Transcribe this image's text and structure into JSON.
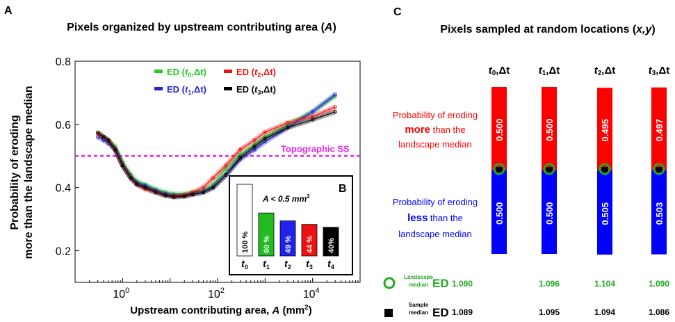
{
  "panel_a": {
    "letter": "A",
    "title": "Pixels organized by upstream contributing area (A)",
    "title_main": "Pixels organized by upstream contributing area (",
    "title_var": "A",
    "title_end": ")",
    "ylabel_line1": "Probability of eroding",
    "ylabel_line2": "more than the landscape median",
    "xlabel_main": "Upstream contributing area, ",
    "xlabel_var": "A",
    "xlabel_unit": " (mm",
    "xlabel_exp": "2",
    "xlabel_end": ")",
    "ss_label": "Topographic  SS",
    "legend": [
      {
        "name": "ED (t0,Δt)",
        "pre": "ED (",
        "t": "t",
        "sub": "0",
        "post": ",Δt)",
        "color": "#22cc22"
      },
      {
        "name": "ED (t2,Δt)",
        "pre": "ED (",
        "t": "t",
        "sub": "2",
        "post": ",Δt)",
        "color": "#ee1111"
      },
      {
        "name": "ED (t1,Δt)",
        "pre": "ED (",
        "t": "t",
        "sub": "1",
        "post": ",Δt)",
        "color": "#2222dd"
      },
      {
        "name": "ED (t3,Δt)",
        "pre": "ED (",
        "t": "t",
        "sub": "3",
        "post": ",Δt)",
        "color": "#000000"
      }
    ]
  },
  "panel_b": {
    "letter": "B",
    "condition_main": "A < 0.5 mm",
    "condition_exp": "2",
    "bars": [
      {
        "label": "100 %",
        "t": "t",
        "sub": "0",
        "value": 100,
        "fill": "#ffffff",
        "text_color": "#000000"
      },
      {
        "label": "60 %",
        "t": "t",
        "sub": "1",
        "value": 60,
        "fill": "#22bb22",
        "text_color": "#ffffff"
      },
      {
        "label": "49 %",
        "t": "t",
        "sub": "2",
        "value": 49,
        "fill": "#2222ee",
        "text_color": "#ffffff"
      },
      {
        "label": "44 %",
        "t": "t",
        "sub": "3",
        "value": 44,
        "fill": "#ee1111",
        "text_color": "#ffffff"
      },
      {
        "label": "40%",
        "t": "t",
        "sub": "4",
        "value": 40,
        "fill": "#000000",
        "text_color": "#ffffff"
      }
    ]
  },
  "panel_c": {
    "letter": "C",
    "title": "Pixels sampled at random locations (x,y)",
    "title_main": "Pixels sampled at random locations (",
    "title_var": "x,y",
    "title_end": ")",
    "more_line1": "Probability of eroding",
    "more_word": "more",
    "more_rest": " than the",
    "more_line3": "landscape median",
    "less_line1": "Probability of eroding",
    "less_word": "less",
    "less_rest": "  than the",
    "less_line3": "landscape median",
    "landscape_label_1": "Landscape",
    "landscape_label_2": "median",
    "sample_label_1": "Sample",
    "sample_label_2": "median",
    "ed_label": "ED",
    "columns": [
      {
        "t": "t",
        "sub": "0",
        "suffix": ",Δt",
        "more": 0.5,
        "less": 0.5,
        "more_label": "0.500",
        "less_label": "0.500",
        "landscape_ed": "1.090",
        "sample_ed": "1.089"
      },
      {
        "t": "t",
        "sub": "1",
        "suffix": ",Δt",
        "more": 0.5,
        "less": 0.5,
        "more_label": "0.500",
        "less_label": "0.500",
        "landscape_ed": "1.096",
        "sample_ed": "1.095"
      },
      {
        "t": "t",
        "sub": "2",
        "suffix": ",Δt",
        "more": 0.495,
        "less": 0.505,
        "more_label": "0.495",
        "less_label": "0.505",
        "landscape_ed": "1.104",
        "sample_ed": "1.094"
      },
      {
        "t": "t",
        "sub": "3",
        "suffix": ",Δt",
        "more": 0.497,
        "less": 0.503,
        "more_label": "0.497",
        "less_label": "0.503",
        "landscape_ed": "1.090",
        "sample_ed": "1.086"
      }
    ],
    "colors": {
      "more": "#ff0000",
      "less": "#0000ff",
      "landscape": "#22aa22",
      "sample": "#000000"
    }
  },
  "chart_data": {
    "type": "line",
    "x_scale": "log",
    "xlim": [
      0.1,
      100000
    ],
    "ylim": [
      0.1,
      0.8
    ],
    "yticks": [
      "0.2",
      "0.4",
      "0.6",
      "0.8"
    ],
    "xtick_base": "10",
    "xtick_exponents": [
      "0",
      "2",
      "4"
    ],
    "reference_line": {
      "y": 0.5,
      "label": "Topographic  SS",
      "color": "#ee22ee"
    },
    "series": [
      {
        "name": "ED (t0,Δt)",
        "color": "#22cc22",
        "points": [
          [
            0.3,
            0.57
          ],
          [
            0.4,
            0.56
          ],
          [
            0.5,
            0.55
          ],
          [
            0.7,
            0.53
          ],
          [
            1,
            0.48
          ],
          [
            1.5,
            0.44
          ],
          [
            2,
            0.42
          ],
          [
            3,
            0.41
          ],
          [
            5,
            0.395
          ],
          [
            8,
            0.385
          ],
          [
            12,
            0.38
          ],
          [
            20,
            0.38
          ],
          [
            30,
            0.385
          ],
          [
            50,
            0.39
          ],
          [
            80,
            0.41
          ],
          [
            150,
            0.46
          ],
          [
            300,
            0.505
          ],
          [
            600,
            0.535
          ],
          [
            1000,
            0.56
          ],
          [
            3000,
            0.6
          ],
          [
            10000,
            0.64
          ],
          [
            30000,
            0.69
          ]
        ]
      },
      {
        "name": "ED (t1,Δt)",
        "color": "#2222dd",
        "points": [
          [
            0.3,
            0.56
          ],
          [
            0.4,
            0.55
          ],
          [
            0.5,
            0.54
          ],
          [
            0.7,
            0.52
          ],
          [
            1,
            0.47
          ],
          [
            1.5,
            0.43
          ],
          [
            2,
            0.415
          ],
          [
            3,
            0.405
          ],
          [
            5,
            0.39
          ],
          [
            8,
            0.38
          ],
          [
            12,
            0.375
          ],
          [
            20,
            0.375
          ],
          [
            30,
            0.38
          ],
          [
            50,
            0.385
          ],
          [
            80,
            0.4
          ],
          [
            150,
            0.44
          ],
          [
            300,
            0.49
          ],
          [
            600,
            0.52
          ],
          [
            1000,
            0.545
          ],
          [
            3000,
            0.59
          ],
          [
            10000,
            0.64
          ],
          [
            30000,
            0.695
          ]
        ]
      },
      {
        "name": "ED (t2,Δt)",
        "color": "#ee1111",
        "points": [
          [
            0.3,
            0.57
          ],
          [
            0.4,
            0.56
          ],
          [
            0.5,
            0.55
          ],
          [
            0.7,
            0.52
          ],
          [
            1,
            0.47
          ],
          [
            1.5,
            0.43
          ],
          [
            2,
            0.41
          ],
          [
            3,
            0.395
          ],
          [
            5,
            0.385
          ],
          [
            8,
            0.375
          ],
          [
            12,
            0.372
          ],
          [
            20,
            0.375
          ],
          [
            30,
            0.385
          ],
          [
            50,
            0.4
          ],
          [
            80,
            0.43
          ],
          [
            150,
            0.47
          ],
          [
            300,
            0.52
          ],
          [
            600,
            0.55
          ],
          [
            1000,
            0.575
          ],
          [
            3000,
            0.605
          ],
          [
            10000,
            0.625
          ],
          [
            30000,
            0.655
          ]
        ]
      },
      {
        "name": "ED (t3,Δt)",
        "color": "#000000",
        "points": [
          [
            0.3,
            0.575
          ],
          [
            0.4,
            0.56
          ],
          [
            0.5,
            0.55
          ],
          [
            0.7,
            0.52
          ],
          [
            1,
            0.47
          ],
          [
            1.5,
            0.43
          ],
          [
            2,
            0.41
          ],
          [
            3,
            0.4
          ],
          [
            5,
            0.385
          ],
          [
            8,
            0.375
          ],
          [
            12,
            0.37
          ],
          [
            20,
            0.372
          ],
          [
            30,
            0.378
          ],
          [
            50,
            0.385
          ],
          [
            80,
            0.4
          ],
          [
            150,
            0.44
          ],
          [
            300,
            0.495
          ],
          [
            600,
            0.53
          ],
          [
            1000,
            0.555
          ],
          [
            3000,
            0.59
          ],
          [
            10000,
            0.615
          ],
          [
            30000,
            0.64
          ]
        ]
      }
    ]
  }
}
